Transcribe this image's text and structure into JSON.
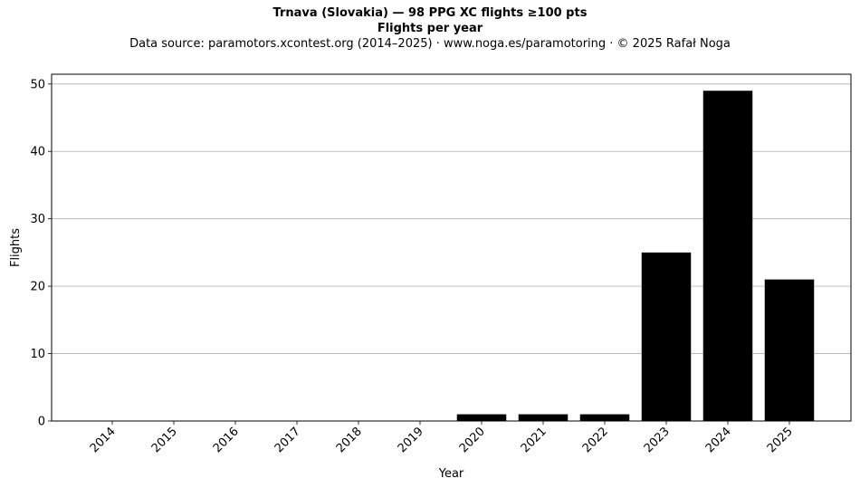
{
  "chart_data": {
    "type": "bar",
    "title": "Trnava (Slovakia)  —  98 PPG XC flights ≥100 pts",
    "subtitle": "Flights per year",
    "source": "Data source: paramotors.xcontest.org (2014–2025)  ·  www.noga.es/paramotoring  ·  © 2025 Rafał Noga",
    "xlabel": "Year",
    "ylabel": "Flights",
    "categories": [
      "2014",
      "2015",
      "2016",
      "2017",
      "2018",
      "2019",
      "2020",
      "2021",
      "2022",
      "2023",
      "2024",
      "2025"
    ],
    "values": [
      0,
      0,
      0,
      0,
      0,
      0,
      1,
      1,
      1,
      25,
      49,
      21
    ],
    "ylim": [
      0,
      51.45
    ],
    "yticks": [
      0,
      10,
      20,
      30,
      40,
      50
    ],
    "grid": "y",
    "bar_color": "#000000",
    "grid_color": "#b0b0b0"
  }
}
